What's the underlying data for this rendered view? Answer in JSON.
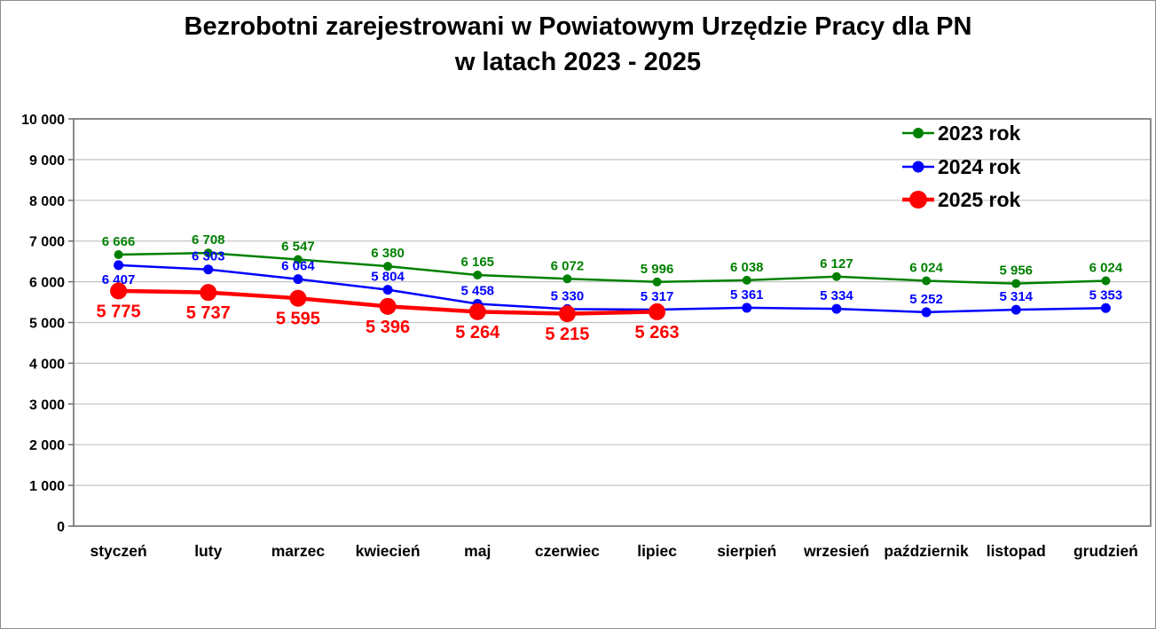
{
  "figure": {
    "title_line1": "Bezrobotni zarejestrowani w Powiatowym Urzędzie Pracy dla PN",
    "title_line2": "w latach 2023 - 2025"
  },
  "chart_data": {
    "type": "line",
    "title": "Bezrobotni zarejestrowani w Powiatowym Urzędzie Pracy dla PN w latach 2023 - 2025",
    "categories": [
      "styczeń",
      "luty",
      "marzec",
      "kwiecień",
      "maj",
      "czerwiec",
      "lipiec",
      "sierpień",
      "wrzesień",
      "październik",
      "listopad",
      "grudzień"
    ],
    "series": [
      {
        "name": "2023 rok",
        "color": "#008000",
        "values": [
          6666,
          6708,
          6547,
          6380,
          6165,
          6072,
          5996,
          6038,
          6127,
          6024,
          5956,
          6024
        ],
        "marker_radius": 5,
        "line_width": 2.5,
        "label_font_size": 15,
        "label_position": "above",
        "label_overrides": {}
      },
      {
        "name": "2024 rok",
        "color": "#0000ff",
        "values": [
          6407,
          6303,
          6064,
          5804,
          5458,
          5330,
          5317,
          5361,
          5334,
          5252,
          5314,
          5353
        ],
        "marker_radius": 5.5,
        "line_width": 2.5,
        "label_font_size": 15,
        "label_position": "above",
        "label_overrides": {
          "0": "below"
        }
      },
      {
        "name": "2025 rok",
        "color": "#ff0000",
        "values": [
          5775,
          5737,
          5595,
          5396,
          5264,
          5215,
          5263
        ],
        "marker_radius": 9.5,
        "line_width": 4.5,
        "label_font_size": 20,
        "label_position": "below",
        "label_overrides": {}
      }
    ],
    "xlabel": "",
    "ylabel": "",
    "ylim": [
      0,
      10000
    ],
    "y_tick_step": 1000,
    "y_tick_labels": [
      "0",
      "1 000",
      "2 000",
      "3 000",
      "4 000",
      "5 000",
      "6 000",
      "7 000",
      "8 000",
      "9 000",
      "10 000"
    ],
    "grid": true,
    "legend_position": "top-right",
    "number_format": "space-thousands"
  }
}
